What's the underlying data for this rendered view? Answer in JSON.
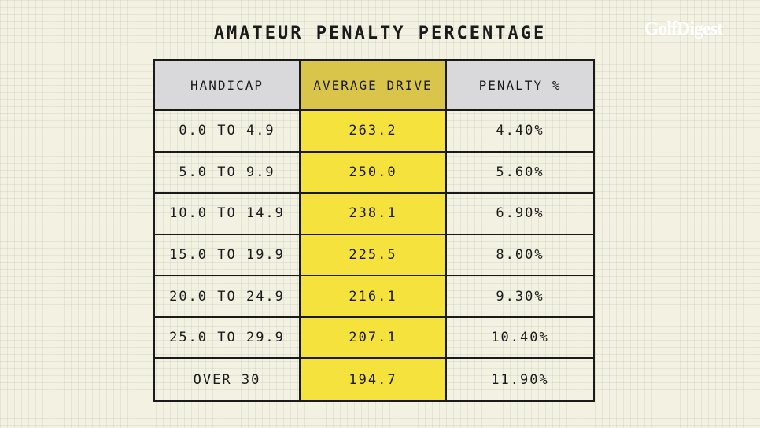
{
  "header": {
    "title": "AMATEUR PENALTY PERCENTAGE",
    "logo": "GolfDigest"
  },
  "table": {
    "columns": [
      "HANDICAP",
      "AVERAGE DRIVE",
      "PENALTY %"
    ],
    "rows": [
      [
        "0.0 TO 4.9",
        "263.2",
        "4.40%"
      ],
      [
        "5.0 TO 9.9",
        "250.0",
        "5.60%"
      ],
      [
        "10.0 TO 14.9",
        "238.1",
        "6.90%"
      ],
      [
        "15.0 TO 19.9",
        "225.5",
        "8.00%"
      ],
      [
        "20.0 TO 24.9",
        "216.1",
        "9.30%"
      ],
      [
        "25.0 TO 29.9",
        "207.1",
        "10.40%"
      ],
      [
        "OVER 30",
        "194.7",
        "11.90%"
      ]
    ]
  }
}
